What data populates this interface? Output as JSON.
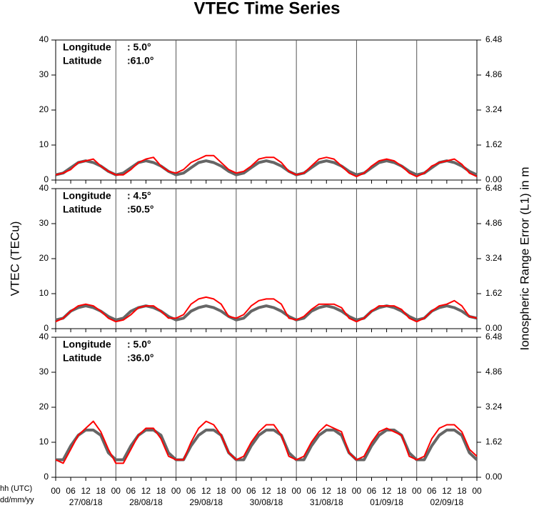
{
  "title": "VTEC Time Series",
  "y_label": "VTEC (TECu)",
  "y2_label": "Ionospheric Range Error (L1) in m",
  "x_label": "hh (UTC)",
  "date_label": "dd/mm/yy",
  "dates": [
    "27/08/18",
    "28/08/18",
    "29/08/18",
    "30/08/18",
    "31/08/18",
    "01/09/18",
    "02/09/18"
  ],
  "chart_data": [
    {
      "type": "line",
      "longitude_label": "Longitude",
      "longitude": ":  5.0°",
      "latitude_label": "Latitude",
      "latitude": ":61.0°",
      "x": [
        0,
        3,
        6,
        9,
        12,
        15,
        18,
        21,
        24,
        27,
        30,
        33,
        36,
        39,
        42,
        45,
        48,
        51,
        54,
        57,
        60,
        63,
        66,
        69,
        72,
        75,
        78,
        81,
        84,
        87,
        90,
        93,
        96,
        99,
        102,
        105,
        108,
        111,
        114,
        117,
        120,
        123,
        126,
        129,
        132,
        135,
        138,
        141,
        144,
        147,
        150,
        153,
        156,
        159,
        162,
        165,
        168
      ],
      "xlim": [
        0,
        168
      ],
      "ylim": [
        0,
        40
      ],
      "yticks": [
        0,
        10,
        20,
        30,
        40
      ],
      "y2lim": [
        0,
        6.48
      ],
      "y2ticks": [
        {
          "value": 0,
          "label": "0.00"
        },
        {
          "value": 1.62,
          "label": "1.62"
        },
        {
          "value": 3.24,
          "label": "3.24"
        },
        {
          "value": 4.86,
          "label": "4.86"
        },
        {
          "value": 6.48,
          "label": "6.48"
        }
      ],
      "series": [
        {
          "color": "#666666",
          "values": [
            1.5,
            2,
            3.5,
            5,
            5.5,
            5,
            4,
            2.5,
            1.5,
            2,
            3.5,
            5,
            5.5,
            5,
            4,
            2.5,
            1.5,
            2,
            3.5,
            5,
            5.5,
            5,
            4,
            2.5,
            1.5,
            2,
            3.5,
            5,
            5.5,
            5,
            4,
            2.5,
            1.5,
            2,
            3.5,
            5,
            5.5,
            5,
            4,
            2.5,
            1.5,
            2,
            3.5,
            5,
            5.5,
            5,
            4,
            2.5,
            1.5,
            2,
            3.5,
            5,
            5.5,
            5,
            4,
            2.5,
            1.5
          ]
        },
        {
          "color": "#ff0000",
          "values": [
            1.5,
            2,
            3,
            5,
            5.5,
            6,
            4,
            2.5,
            1.5,
            1.5,
            3,
            5,
            6,
            6.5,
            4,
            2.5,
            2,
            3,
            5,
            6,
            7,
            7,
            5,
            3,
            2,
            2.5,
            4,
            6,
            6.5,
            6.5,
            5,
            2.5,
            1.5,
            2,
            4,
            6,
            6.5,
            6,
            4,
            2,
            1,
            2,
            4,
            5.5,
            6,
            5.5,
            4,
            2,
            1,
            2,
            4,
            5,
            5.5,
            6,
            4.5,
            2,
            1
          ]
        }
      ]
    },
    {
      "type": "line",
      "longitude_label": "Longitude",
      "longitude": ":  4.5°",
      "latitude_label": "Latitude",
      "latitude": ":50.5°",
      "x": [
        0,
        3,
        6,
        9,
        12,
        15,
        18,
        21,
        24,
        27,
        30,
        33,
        36,
        39,
        42,
        45,
        48,
        51,
        54,
        57,
        60,
        63,
        66,
        69,
        72,
        75,
        78,
        81,
        84,
        87,
        90,
        93,
        96,
        99,
        102,
        105,
        108,
        111,
        114,
        117,
        120,
        123,
        126,
        129,
        132,
        135,
        138,
        141,
        144,
        147,
        150,
        153,
        156,
        159,
        162,
        165,
        168
      ],
      "xlim": [
        0,
        168
      ],
      "ylim": [
        0,
        40
      ],
      "yticks": [
        0,
        10,
        20,
        30,
        40
      ],
      "y2lim": [
        0,
        6.48
      ],
      "y2ticks": [
        {
          "value": 0,
          "label": "0.00"
        },
        {
          "value": 1.62,
          "label": "1.62"
        },
        {
          "value": 3.24,
          "label": "3.24"
        },
        {
          "value": 4.86,
          "label": "4.86"
        },
        {
          "value": 6.48,
          "label": "6.48"
        }
      ],
      "series": [
        {
          "color": "#666666",
          "values": [
            2.5,
            3,
            5,
            6,
            6.5,
            6,
            5,
            3.5,
            2.5,
            3,
            5,
            6,
            6.5,
            6,
            5,
            3.5,
            2.5,
            3,
            5,
            6,
            6.5,
            6,
            5,
            3.5,
            2.5,
            3,
            5,
            6,
            6.5,
            6,
            5,
            3.5,
            2.5,
            3,
            5,
            6,
            6.5,
            6,
            5,
            3.5,
            2.5,
            3,
            5,
            6,
            6.5,
            6,
            5,
            3.5,
            2.5,
            3,
            5,
            6,
            6.5,
            6,
            5,
            3.5,
            3
          ]
        },
        {
          "color": "#ff0000",
          "values": [
            2,
            3,
            5,
            6.5,
            7,
            6.5,
            5,
            3,
            2,
            2.5,
            4,
            6,
            6.5,
            6.5,
            5,
            3,
            3,
            4,
            7,
            8.5,
            9,
            8.5,
            7,
            3.5,
            3,
            4,
            6.5,
            8,
            8.5,
            8.5,
            7,
            3,
            2.5,
            3.5,
            5.5,
            7,
            7,
            7,
            6,
            3,
            2,
            3,
            5,
            6.5,
            6.5,
            6.5,
            5.5,
            3,
            2,
            3,
            5,
            6.5,
            7,
            8,
            6.5,
            3.5,
            3
          ]
        }
      ]
    },
    {
      "type": "line",
      "longitude_label": "Longitude",
      "longitude": ":  5.0°",
      "latitude_label": "Latitude",
      "latitude": ":36.0°",
      "x": [
        0,
        3,
        6,
        9,
        12,
        15,
        18,
        21,
        24,
        27,
        30,
        33,
        36,
        39,
        42,
        45,
        48,
        51,
        54,
        57,
        60,
        63,
        66,
        69,
        72,
        75,
        78,
        81,
        84,
        87,
        90,
        93,
        96,
        99,
        102,
        105,
        108,
        111,
        114,
        117,
        120,
        123,
        126,
        129,
        132,
        135,
        138,
        141,
        144,
        147,
        150,
        153,
        156,
        159,
        162,
        165,
        168
      ],
      "xlim": [
        0,
        168
      ],
      "ylim": [
        0,
        40
      ],
      "yticks": [
        0,
        10,
        20,
        30,
        40
      ],
      "y2lim": [
        0,
        6.48
      ],
      "y2ticks": [
        {
          "value": 0,
          "label": "0.00"
        },
        {
          "value": 1.62,
          "label": "1.62"
        },
        {
          "value": 3.24,
          "label": "3.24"
        },
        {
          "value": 4.86,
          "label": "4.86"
        },
        {
          "value": 6.48,
          "label": "6.48"
        }
      ],
      "xticks": [
        {
          "value": 0,
          "label": "00"
        },
        {
          "value": 6,
          "label": "06"
        },
        {
          "value": 12,
          "label": "12"
        },
        {
          "value": 18,
          "label": "18"
        },
        {
          "value": 24,
          "label": "00"
        },
        {
          "value": 30,
          "label": "06"
        },
        {
          "value": 36,
          "label": "12"
        },
        {
          "value": 42,
          "label": "18"
        },
        {
          "value": 48,
          "label": "00"
        },
        {
          "value": 54,
          "label": "06"
        },
        {
          "value": 60,
          "label": "12"
        },
        {
          "value": 66,
          "label": "18"
        },
        {
          "value": 72,
          "label": "00"
        },
        {
          "value": 78,
          "label": "06"
        },
        {
          "value": 84,
          "label": "12"
        },
        {
          "value": 90,
          "label": "18"
        },
        {
          "value": 96,
          "label": "00"
        },
        {
          "value": 102,
          "label": "06"
        },
        {
          "value": 108,
          "label": "12"
        },
        {
          "value": 114,
          "label": "18"
        },
        {
          "value": 120,
          "label": "00"
        },
        {
          "value": 126,
          "label": "06"
        },
        {
          "value": 132,
          "label": "12"
        },
        {
          "value": 138,
          "label": "18"
        },
        {
          "value": 144,
          "label": "00"
        },
        {
          "value": 150,
          "label": "06"
        },
        {
          "value": 156,
          "label": "12"
        },
        {
          "value": 162,
          "label": "18"
        },
        {
          "value": 168,
          "label": "00"
        }
      ],
      "series": [
        {
          "color": "#666666",
          "values": [
            5,
            5,
            9,
            12,
            13.5,
            13.5,
            12,
            7,
            5,
            5,
            9,
            12,
            13.5,
            13.5,
            12,
            7,
            5,
            5,
            9,
            12,
            13.5,
            13.5,
            12,
            7,
            5,
            5,
            9,
            12,
            13.5,
            13.5,
            12,
            7,
            5,
            5,
            9,
            12,
            13.5,
            13.5,
            12,
            7,
            5,
            5,
            9,
            12,
            13.5,
            13.5,
            12,
            7,
            5,
            5,
            9,
            12,
            13.5,
            13.5,
            12,
            7,
            5
          ]
        },
        {
          "color": "#ff0000",
          "values": [
            5,
            4,
            8,
            12,
            14,
            16,
            13,
            8,
            4,
            4,
            8,
            12,
            14,
            14,
            11,
            6,
            5,
            5,
            10,
            14,
            16,
            15,
            12,
            7,
            5,
            6,
            10,
            13,
            15,
            15,
            12,
            6,
            5,
            6,
            10,
            13,
            15,
            14,
            13,
            7,
            5,
            6,
            10,
            13,
            14,
            13,
            12,
            6,
            5,
            6,
            11,
            14,
            15,
            15,
            13,
            8,
            6
          ]
        }
      ]
    }
  ]
}
